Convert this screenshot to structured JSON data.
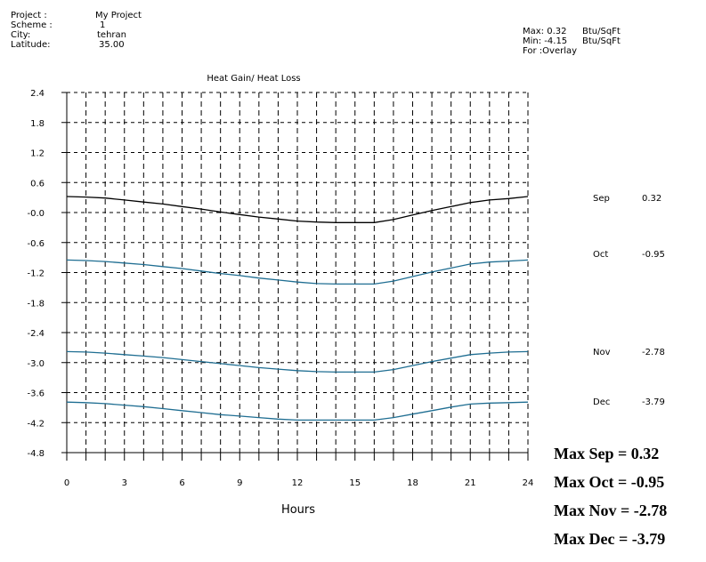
{
  "header": {
    "fields": [
      {
        "key": "Project :",
        "value": "My Project"
      },
      {
        "key": "Scheme  :",
        "value": "1"
      },
      {
        "key": "City:",
        "value": "tehran"
      },
      {
        "key": "Latitude:",
        "value": "35.00"
      }
    ]
  },
  "stats": {
    "max_label": "Max: 0.32",
    "max_unit": "Btu/SqFt",
    "min_label": "Min: -4.15",
    "min_unit": "Btu/SqFt",
    "for_label": "For :Overlay"
  },
  "summary": [
    "Max Sep = 0.32",
    "Max Oct = -0.95",
    "Max Nov = -2.78",
    "Max Dec = -3.79"
  ],
  "colors": {
    "sep": "#000000",
    "others": "#1f6e92",
    "grid": "#000000"
  },
  "chart_data": {
    "type": "line",
    "title": "Heat Gain/ Heat Loss",
    "xlabel": "Hours",
    "ylabel": "",
    "xlim": [
      0,
      24
    ],
    "ylim": [
      -4.8,
      2.4
    ],
    "xticks": [
      "0",
      "3",
      "6",
      "9",
      "12",
      "15",
      "18",
      "21",
      "24"
    ],
    "yticks": [
      "2.4",
      "1.8",
      "1.2",
      "0.6",
      "-0.0",
      "-0.6",
      "-1.2",
      "-1.8",
      "-2.4",
      "-3.0",
      "-3.6",
      "-4.2",
      "-4.8"
    ],
    "grid": true,
    "legend": "right",
    "x": [
      0,
      1,
      2,
      3,
      4,
      5,
      6,
      7,
      8,
      9,
      10,
      11,
      12,
      13,
      14,
      15,
      16,
      17,
      18,
      19,
      20,
      21,
      22,
      23,
      24
    ],
    "series": [
      {
        "name": "Sep",
        "label_value": "0.32",
        "values": [
          0.32,
          0.31,
          0.29,
          0.25,
          0.21,
          0.17,
          0.12,
          0.07,
          0.01,
          -0.04,
          -0.09,
          -0.13,
          -0.17,
          -0.19,
          -0.2,
          -0.2,
          -0.2,
          -0.14,
          -0.05,
          0.04,
          0.12,
          0.2,
          0.25,
          0.28,
          0.32
        ]
      },
      {
        "name": "Oct",
        "label_value": "-0.95",
        "values": [
          -0.95,
          -0.96,
          -0.98,
          -1.01,
          -1.04,
          -1.08,
          -1.12,
          -1.17,
          -1.22,
          -1.26,
          -1.31,
          -1.35,
          -1.39,
          -1.42,
          -1.43,
          -1.43,
          -1.43,
          -1.37,
          -1.28,
          -1.19,
          -1.11,
          -1.03,
          -0.99,
          -0.97,
          -0.95
        ]
      },
      {
        "name": "Nov",
        "label_value": "-2.78",
        "values": [
          -2.78,
          -2.79,
          -2.81,
          -2.84,
          -2.87,
          -2.9,
          -2.94,
          -2.98,
          -3.02,
          -3.06,
          -3.1,
          -3.13,
          -3.16,
          -3.18,
          -3.19,
          -3.19,
          -3.19,
          -3.14,
          -3.06,
          -2.98,
          -2.91,
          -2.84,
          -2.81,
          -2.79,
          -2.78
        ]
      },
      {
        "name": "Dec",
        "label_value": "-3.79",
        "values": [
          -3.79,
          -3.8,
          -3.82,
          -3.85,
          -3.88,
          -3.92,
          -3.96,
          -4.0,
          -4.04,
          -4.07,
          -4.1,
          -4.13,
          -4.15,
          -4.15,
          -4.15,
          -4.15,
          -4.15,
          -4.1,
          -4.03,
          -3.96,
          -3.89,
          -3.83,
          -3.81,
          -3.8,
          -3.79
        ]
      }
    ]
  }
}
